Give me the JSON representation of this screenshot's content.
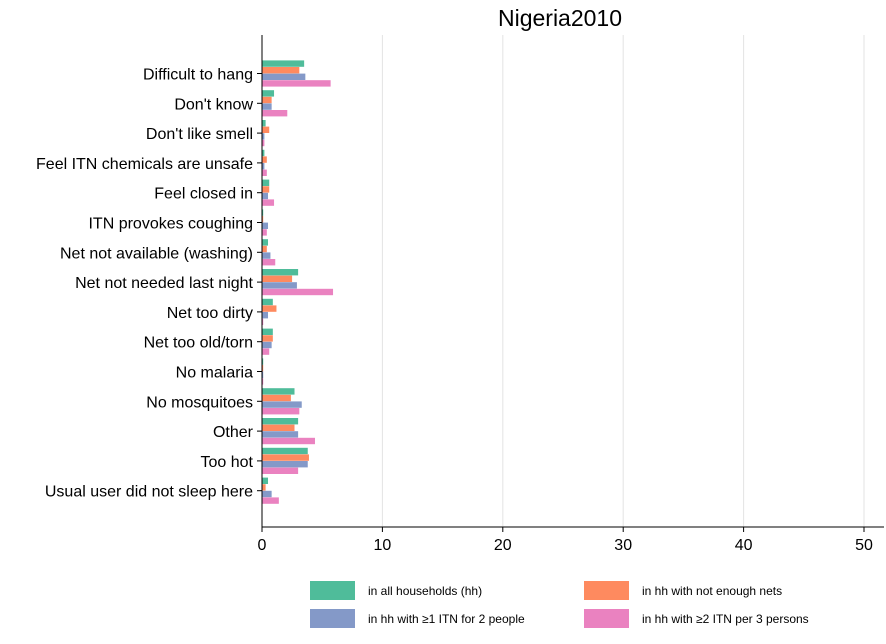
{
  "chart_data": {
    "type": "bar",
    "orientation": "horizontal",
    "title": "Nigeria2010",
    "xlabel": "",
    "ylabel": "",
    "xlim": [
      0,
      51.5
    ],
    "x_ticks": [
      0,
      10,
      20,
      30,
      40,
      50
    ],
    "grid": true,
    "legend_position": "bottom",
    "categories": [
      "Difficult to hang",
      "Don't know",
      "Don't like smell",
      "Feel ITN chemicals are unsafe",
      "Feel closed in",
      "ITN provokes coughing",
      "Net not available (washing)",
      "Net not needed last night",
      "Net too dirty",
      "Net too old/torn",
      "No malaria",
      "No mosquitoes",
      "Other",
      "Too hot",
      "Usual user did not sleep here"
    ],
    "series": [
      {
        "name": "in all households (hh)",
        "color": "#4fbc9a",
        "values": [
          3.5,
          1.0,
          0.3,
          0.2,
          0.6,
          0.1,
          0.5,
          3.0,
          0.9,
          0.9,
          0.1,
          2.7,
          3.0,
          3.8,
          0.5
        ]
      },
      {
        "name": "in hh with not enough nets",
        "color": "#fe8a5f",
        "values": [
          3.1,
          0.8,
          0.6,
          0.4,
          0.6,
          0.1,
          0.4,
          2.5,
          1.2,
          0.9,
          0.1,
          2.4,
          2.7,
          3.9,
          0.3
        ]
      },
      {
        "name": "in hh with ≥1 ITN for 2 people",
        "color": "#8499c8",
        "values": [
          3.6,
          0.8,
          0.2,
          0.2,
          0.5,
          0.5,
          0.7,
          2.9,
          0.5,
          0.8,
          0.1,
          3.3,
          3.0,
          3.8,
          0.8
        ]
      },
      {
        "name": "in hh with ≥2 ITN per 3 persons",
        "color": "#ea82c0",
        "values": [
          5.7,
          2.1,
          0.2,
          0.4,
          1.0,
          0.4,
          1.1,
          5.9,
          0.1,
          0.6,
          0.1,
          3.1,
          4.4,
          3.0,
          1.4
        ]
      }
    ]
  }
}
